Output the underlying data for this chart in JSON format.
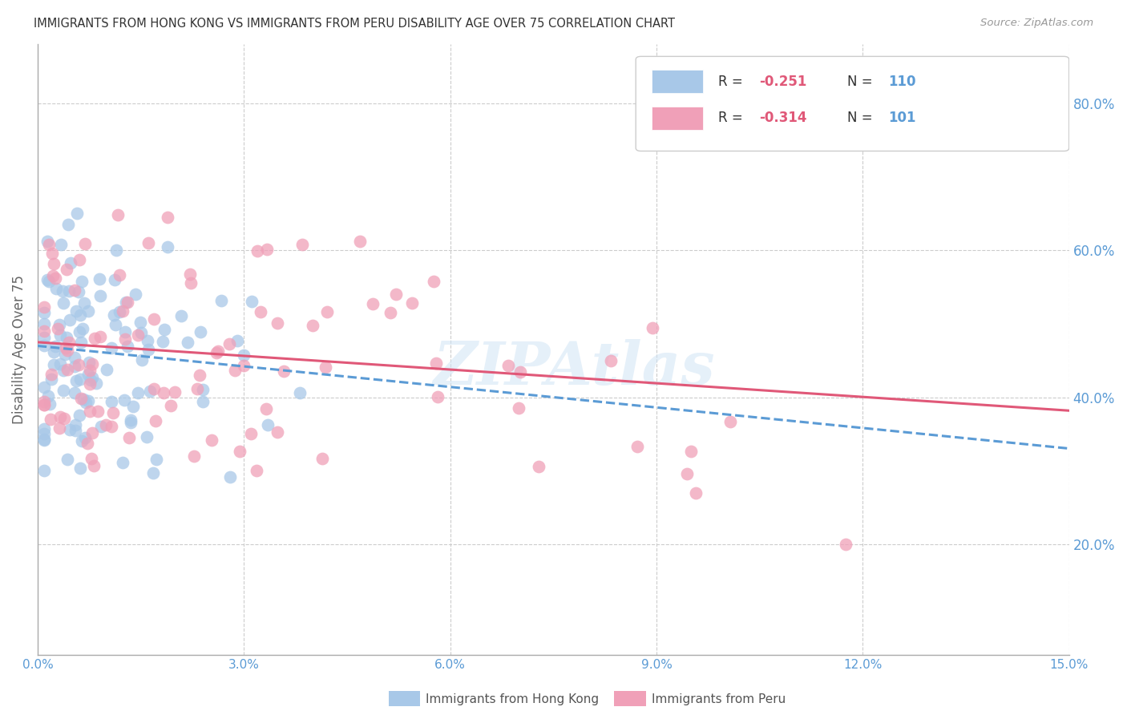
{
  "title": "IMMIGRANTS FROM HONG KONG VS IMMIGRANTS FROM PERU DISABILITY AGE OVER 75 CORRELATION CHART",
  "source": "Source: ZipAtlas.com",
  "ylabel": "Disability Age Over 75",
  "xlim": [
    0.0,
    0.15
  ],
  "ylim": [
    0.05,
    0.88
  ],
  "yticks_right": [
    0.2,
    0.4,
    0.6,
    0.8
  ],
  "xticks": [
    0.0,
    0.03,
    0.06,
    0.09,
    0.12,
    0.15
  ],
  "hk_color": "#A8C8E8",
  "peru_color": "#F0A0B8",
  "hk_line_color": "#5B9BD5",
  "peru_line_color": "#E05878",
  "hk_R": -0.251,
  "hk_N": 110,
  "peru_R": -0.314,
  "peru_N": 101,
  "hk_intercept": 0.47,
  "hk_slope": -0.93,
  "peru_intercept": 0.475,
  "peru_slope": -0.62,
  "watermark": "ZIPAtlas",
  "legend_label_hk": "Immigrants from Hong Kong",
  "legend_label_peru": "Immigrants from Peru",
  "background_color": "#FFFFFF",
  "grid_color": "#CCCCCC",
  "title_color": "#333333",
  "axis_color": "#5B9BD5",
  "r_color": "#E05878",
  "n_color": "#5B9BD5"
}
